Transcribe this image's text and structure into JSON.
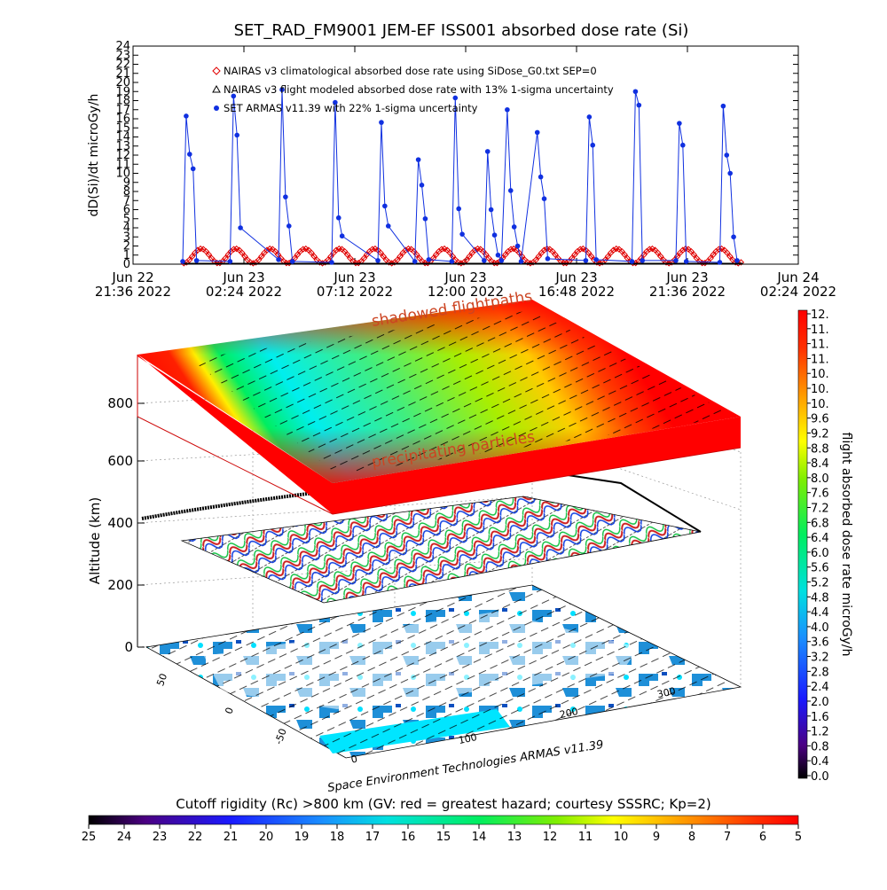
{
  "title": "SET_RAD_FM9001  JEM-EF ISS001 absorbed dose rate (Si)",
  "chart_data": [
    {
      "type": "line",
      "ylabel": "dD(Si)/dt microGy/h",
      "xlabel": "",
      "ylim": [
        0,
        24
      ],
      "y_ticks": [
        "0",
        "1",
        "2",
        "3",
        "4",
        "5",
        "6",
        "7",
        "8",
        "9",
        "10",
        "11",
        "12",
        "13",
        "14",
        "15",
        "16",
        "17",
        "18",
        "19",
        "20",
        "21",
        "22",
        "23",
        "24"
      ],
      "x_ticks": [
        {
          "line1": "Jun 22",
          "line2": "21:36 2022"
        },
        {
          "line1": "Jun 23",
          "line2": "02:24 2022"
        },
        {
          "line1": "Jun 23",
          "line2": "07:12 2022"
        },
        {
          "line1": "Jun 23",
          "line2": "12:00 2022"
        },
        {
          "line1": "Jun 23",
          "line2": "16:48 2022"
        },
        {
          "line1": "Jun 23",
          "line2": "21:36 2022"
        },
        {
          "line1": "Jun 24",
          "line2": "02:24 2022"
        }
      ],
      "x_hours_range": [
        0,
        28.8
      ],
      "legend_placement": "top-left",
      "series": [
        {
          "name": "NAIRAS v3 climatological absorbed dose rate using SiDose_G0.txt SEP=0",
          "color": "#e00000",
          "marker": "diamond",
          "model": {
            "start_h": 2.2,
            "end_h": 26.4,
            "period_h": 1.5,
            "mean": 0.9,
            "amp": 0.8
          }
        },
        {
          "name": "NAIRAS v3 flight modeled absorbed dose rate with 13% 1-sigma uncertainty",
          "color": "#000000",
          "marker": "triangle",
          "model": {
            "start_h": 2.2,
            "end_h": 26.4,
            "value": 0.05
          }
        },
        {
          "name": "SET ARMAS v11.39 with 22% 1-sigma uncertainty",
          "color": "#1030e0",
          "marker": "circle",
          "x_hours": [
            2.15,
            2.3,
            2.45,
            2.6,
            2.75,
            4.2,
            4.35,
            4.5,
            4.65,
            6.3,
            6.45,
            6.6,
            6.75,
            6.9,
            8.6,
            8.75,
            8.9,
            9.05,
            10.6,
            10.75,
            10.9,
            11.05,
            12.2,
            12.35,
            12.5,
            12.65,
            12.8,
            13.8,
            13.95,
            14.1,
            14.25,
            15.2,
            15.35,
            15.5,
            15.65,
            15.8,
            15.95,
            16.2,
            16.35,
            16.5,
            16.65,
            16.8,
            17.5,
            17.65,
            17.8,
            17.95,
            19.6,
            19.75,
            19.9,
            20.05,
            21.6,
            21.75,
            21.9,
            22.05,
            23.5,
            23.65,
            23.8,
            23.95,
            25.4,
            25.55,
            25.7,
            25.85,
            26.0,
            26.15
          ],
          "values": [
            0.3,
            16.3,
            12.1,
            10.5,
            0.4,
            0.3,
            18.5,
            14.2,
            4.0,
            0.5,
            19.2,
            7.4,
            4.2,
            0.3,
            0.2,
            17.8,
            5.1,
            3.1,
            0.4,
            15.6,
            6.4,
            4.2,
            0.3,
            11.5,
            8.7,
            5.0,
            0.5,
            0.3,
            18.3,
            6.1,
            3.3,
            0.4,
            12.4,
            6.0,
            3.2,
            1.0,
            0.4,
            17.0,
            8.1,
            4.1,
            2.0,
            0.3,
            14.5,
            9.6,
            7.2,
            0.6,
            0.4,
            16.2,
            13.1,
            0.5,
            0.3,
            19.0,
            17.5,
            0.4,
            0.4,
            15.5,
            13.1,
            0.3,
            0.2,
            17.4,
            12.0,
            10.0,
            3.0,
            0.4
          ]
        }
      ]
    },
    {
      "type": "3d-surface",
      "zlabel": "Altitude (km)",
      "z_ticks": [
        "0",
        "200",
        "400",
        "600",
        "800"
      ],
      "lat_ticks": [
        "50",
        "0",
        "-50"
      ],
      "lon_ticks": [
        "0",
        "100",
        "200",
        "300"
      ],
      "annotations": [
        "shadowed flightpaths",
        "precipitating particles"
      ],
      "credit": "Space Environment Technologies ARMAS v11.39"
    },
    {
      "type": "colorbar",
      "orientation": "vertical",
      "label": "flight absorbed dose rate microGy/h",
      "ticks": [
        "12.",
        "11.",
        "11.",
        "11.",
        "10.",
        "10.",
        "10.",
        "9.6",
        "9.2",
        "8.8",
        "8.4",
        "8.0",
        "7.6",
        "7.2",
        "6.8",
        "6.4",
        "6.0",
        "5.6",
        "5.2",
        "4.8",
        "4.4",
        "4.0",
        "3.6",
        "3.2",
        "2.8",
        "2.4",
        "2.0",
        "1.6",
        "1.2",
        "0.8",
        "0.4",
        "0.0"
      ]
    },
    {
      "type": "colorbar",
      "orientation": "horizontal",
      "label": "Cutoff rigidity (Rc) >800 km (GV: red = greatest hazard; courtesy SSSRC; Kp=2)",
      "ticks": [
        "25",
        "24",
        "23",
        "22",
        "21",
        "20",
        "19",
        "18",
        "17",
        "16",
        "15",
        "14",
        "13",
        "12",
        "11",
        "10",
        "9",
        "8",
        "7",
        "6",
        "5"
      ]
    }
  ],
  "colors": {
    "armas": "#1030e0",
    "nairas_clim": "#e00000",
    "nairas_flight": "#000000",
    "land": "#ffffff",
    "ocean_ice": "#1e8fd8",
    "shelf_red": "#ff0000"
  }
}
